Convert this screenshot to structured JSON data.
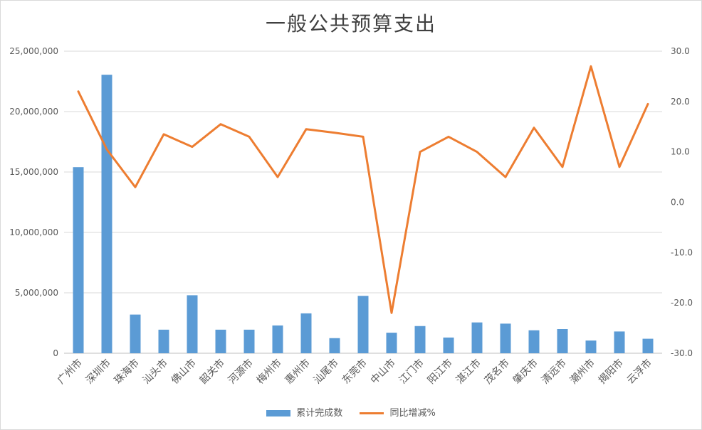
{
  "chart_data": {
    "type": "bar",
    "title": "一般公共预算支出",
    "categories": [
      "广州市",
      "深圳市",
      "珠海市",
      "汕头市",
      "佛山市",
      "韶关市",
      "河源市",
      "梅州市",
      "惠州市",
      "汕尾市",
      "东莞市",
      "中山市",
      "江门市",
      "阳江市",
      "湛江市",
      "茂名市",
      "肇庆市",
      "清远市",
      "潮州市",
      "揭阳市",
      "云浮市"
    ],
    "series": [
      {
        "name": "累计完成数",
        "type": "bar",
        "axis": "left",
        "color": "#5b9bd5",
        "values": [
          15400000,
          23050000,
          3200000,
          1950000,
          4800000,
          1950000,
          1950000,
          2300000,
          3300000,
          1250000,
          4750000,
          1700000,
          2250000,
          1300000,
          2550000,
          2450000,
          1900000,
          2000000,
          1050000,
          1800000,
          1200000
        ]
      },
      {
        "name": "同比增减%",
        "type": "line",
        "axis": "right",
        "color": "#ed7d31",
        "values": [
          22.0,
          10.5,
          3.0,
          13.5,
          11.0,
          15.5,
          13.0,
          5.0,
          14.5,
          13.8,
          13.0,
          -22.0,
          10.0,
          13.0,
          10.0,
          5.0,
          14.8,
          7.0,
          27.0,
          7.0,
          19.5
        ]
      }
    ],
    "ylim_left": [
      0,
      25000000
    ],
    "yticks_left": [
      "0",
      "5,000,000",
      "10,000,000",
      "15,000,000",
      "20,000,000",
      "25,000,000"
    ],
    "ylim_right": [
      -30,
      30
    ],
    "yticks_right": [
      "-30.0",
      "-20.0",
      "-10.0",
      "0.0",
      "10.0",
      "20.0",
      "30.0"
    ],
    "grid": true,
    "legend_position": "bottom"
  }
}
